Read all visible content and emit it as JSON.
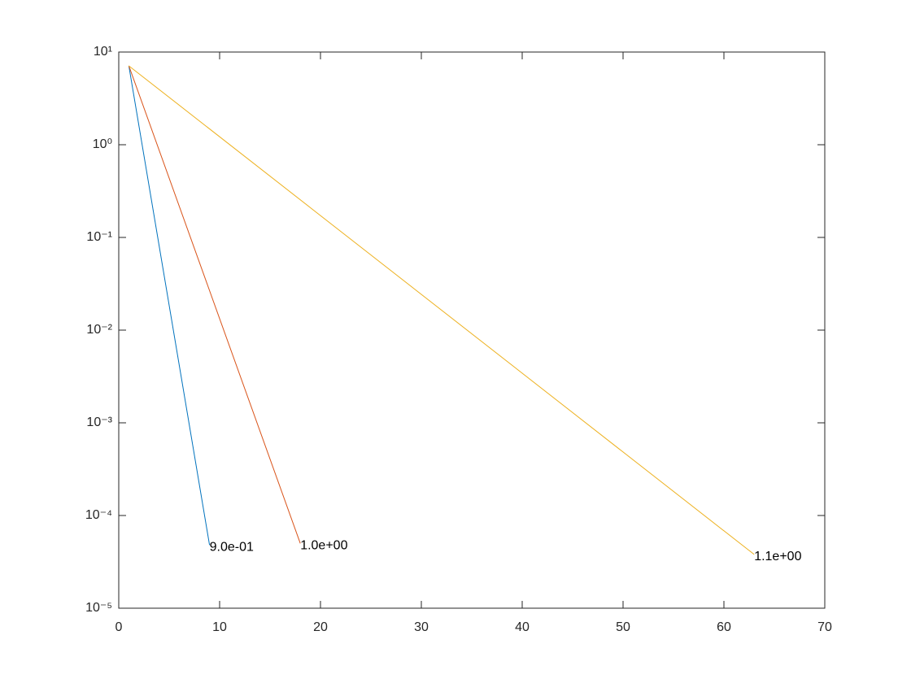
{
  "chart_data": {
    "type": "line",
    "log_y": true,
    "xlim": [
      0,
      70
    ],
    "xticks": [
      0,
      10,
      20,
      30,
      40,
      50,
      60,
      70
    ],
    "ylim": [
      1e-05,
      10
    ],
    "yticks": [
      {
        "value": 1e-05,
        "label": "10⁻⁵"
      },
      {
        "value": 0.0001,
        "label": "10⁻⁴"
      },
      {
        "value": 0.001,
        "label": "10⁻³"
      },
      {
        "value": 0.01,
        "label": "10⁻²"
      },
      {
        "value": 0.1,
        "label": "10⁻¹"
      },
      {
        "value": 1,
        "label": "10⁰"
      },
      {
        "value": 10,
        "label": "10¹"
      }
    ],
    "series": [
      {
        "name": "9.0e-01",
        "color": "#0072bd",
        "x": [
          1,
          9
        ],
        "values": [
          7.1,
          4.8e-05
        ]
      },
      {
        "name": "1.0e+00",
        "color": "#d95319",
        "x": [
          1,
          18
        ],
        "values": [
          7.1,
          5e-05
        ]
      },
      {
        "name": "1.1e+00",
        "color": "#edb120",
        "x": [
          1,
          63
        ],
        "values": [
          7.1,
          3.8e-05
        ]
      }
    ]
  }
}
